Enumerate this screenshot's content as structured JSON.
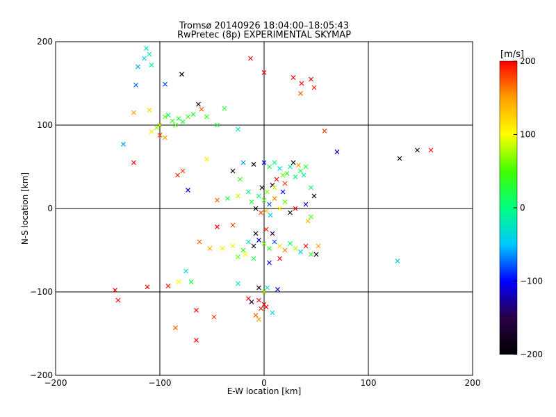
{
  "chart_data": {
    "type": "scatter",
    "title_line1": "Tromsø 20140926 18:04:00–18:05:43",
    "title_line2": "RwPretec (8p) EXPERIMENTAL SKYMAP",
    "xlabel": "E-W location [km]",
    "ylabel": "N-S location [km]",
    "xlim": [
      -200,
      200
    ],
    "ylim": [
      -200,
      200
    ],
    "xticks": [
      -200,
      -100,
      0,
      100,
      200
    ],
    "yticks": [
      -200,
      -100,
      0,
      100,
      200
    ],
    "grid": true,
    "colorbar": {
      "unit_label": "[m/s]",
      "range": [
        -200,
        200
      ],
      "ticks": [
        200,
        100,
        0,
        -100,
        -200
      ],
      "colormap": [
        "#000000",
        "#2a0046",
        "#0000ff",
        "#00c8ff",
        "#00ff80",
        "#40ff00",
        "#ffff00",
        "#ffa000",
        "#ff0000"
      ]
    },
    "points": [
      {
        "x": -113,
        "y": 192,
        "v": -30
      },
      {
        "x": -110,
        "y": 185,
        "v": -20
      },
      {
        "x": -115,
        "y": 180,
        "v": -40
      },
      {
        "x": -121,
        "y": 170,
        "v": -60
      },
      {
        "x": -108,
        "y": 172,
        "v": -10
      },
      {
        "x": -123,
        "y": 148,
        "v": -70
      },
      {
        "x": -95,
        "y": 149,
        "v": -80
      },
      {
        "x": -79,
        "y": 161,
        "v": -190
      },
      {
        "x": -125,
        "y": 115,
        "v": 150
      },
      {
        "x": -110,
        "y": 118,
        "v": 120
      },
      {
        "x": -100,
        "y": 100,
        "v": 90
      },
      {
        "x": -95,
        "y": 110,
        "v": 60
      },
      {
        "x": -88,
        "y": 105,
        "v": 40
      },
      {
        "x": -82,
        "y": 108,
        "v": 30
      },
      {
        "x": -78,
        "y": 104,
        "v": 20
      },
      {
        "x": -73,
        "y": 110,
        "v": 40
      },
      {
        "x": -68,
        "y": 113,
        "v": 30
      },
      {
        "x": -60,
        "y": 119,
        "v": 170
      },
      {
        "x": -63,
        "y": 125,
        "v": -200
      },
      {
        "x": -108,
        "y": 92,
        "v": 110
      },
      {
        "x": -103,
        "y": 97,
        "v": 70
      },
      {
        "x": -92,
        "y": 112,
        "v": 10
      },
      {
        "x": -85,
        "y": 100,
        "v": 50
      },
      {
        "x": -55,
        "y": 110,
        "v": 40
      },
      {
        "x": -45,
        "y": 100,
        "v": 20
      },
      {
        "x": -38,
        "y": 120,
        "v": 30
      },
      {
        "x": -135,
        "y": 77,
        "v": -60
      },
      {
        "x": -125,
        "y": 55,
        "v": 200
      },
      {
        "x": -100,
        "y": 88,
        "v": 180
      },
      {
        "x": -95,
        "y": 85,
        "v": 150
      },
      {
        "x": -25,
        "y": 95,
        "v": -30
      },
      {
        "x": 0,
        "y": 163,
        "v": 200
      },
      {
        "x": -13,
        "y": 180,
        "v": 200
      },
      {
        "x": 28,
        "y": 157,
        "v": 200
      },
      {
        "x": 36,
        "y": 150,
        "v": 200
      },
      {
        "x": 45,
        "y": 155,
        "v": 200
      },
      {
        "x": 35,
        "y": 138,
        "v": 170
      },
      {
        "x": 48,
        "y": 145,
        "v": 190
      },
      {
        "x": 58,
        "y": 93,
        "v": 180
      },
      {
        "x": 70,
        "y": 68,
        "v": -120
      },
      {
        "x": 130,
        "y": 60,
        "v": -200
      },
      {
        "x": 147,
        "y": 70,
        "v": -190
      },
      {
        "x": 160,
        "y": 70,
        "v": 200
      },
      {
        "x": 128,
        "y": -63,
        "v": -40
      },
      {
        "x": -83,
        "y": 40,
        "v": 190
      },
      {
        "x": -78,
        "y": 45,
        "v": 180
      },
      {
        "x": -73,
        "y": 22,
        "v": -110
      },
      {
        "x": -55,
        "y": 59,
        "v": 110
      },
      {
        "x": -30,
        "y": 45,
        "v": -200
      },
      {
        "x": -23,
        "y": 35,
        "v": 40
      },
      {
        "x": -20,
        "y": 55,
        "v": -60
      },
      {
        "x": -10,
        "y": 53,
        "v": -200
      },
      {
        "x": 0,
        "y": 55,
        "v": -100
      },
      {
        "x": 5,
        "y": 50,
        "v": 20
      },
      {
        "x": 10,
        "y": 55,
        "v": 0
      },
      {
        "x": 15,
        "y": 48,
        "v": -30
      },
      {
        "x": 18,
        "y": 40,
        "v": 60
      },
      {
        "x": 22,
        "y": 42,
        "v": 40
      },
      {
        "x": 25,
        "y": 50,
        "v": -20
      },
      {
        "x": 30,
        "y": 38,
        "v": 10
      },
      {
        "x": 35,
        "y": 45,
        "v": 20
      },
      {
        "x": 38,
        "y": 40,
        "v": -10
      },
      {
        "x": 40,
        "y": 50,
        "v": 30
      },
      {
        "x": 28,
        "y": 55,
        "v": -200
      },
      {
        "x": 33,
        "y": 52,
        "v": 150
      },
      {
        "x": 20,
        "y": 30,
        "v": 180
      },
      {
        "x": 12,
        "y": 35,
        "v": 200
      },
      {
        "x": 8,
        "y": 28,
        "v": -150
      },
      {
        "x": 3,
        "y": 20,
        "v": 70
      },
      {
        "x": -2,
        "y": 25,
        "v": -190
      },
      {
        "x": -5,
        "y": 15,
        "v": 0
      },
      {
        "x": 0,
        "y": 10,
        "v": 50
      },
      {
        "x": 5,
        "y": 5,
        "v": -80
      },
      {
        "x": 10,
        "y": 12,
        "v": 160
      },
      {
        "x": 15,
        "y": 0,
        "v": 100
      },
      {
        "x": -8,
        "y": 0,
        "v": -200
      },
      {
        "x": -3,
        "y": -5,
        "v": 180
      },
      {
        "x": 2,
        "y": -3,
        "v": 130
      },
      {
        "x": 6,
        "y": -8,
        "v": -40
      },
      {
        "x": -12,
        "y": 8,
        "v": 30
      },
      {
        "x": -15,
        "y": 20,
        "v": 0
      },
      {
        "x": -25,
        "y": 15,
        "v": 80
      },
      {
        "x": -35,
        "y": 12,
        "v": 20
      },
      {
        "x": -45,
        "y": 10,
        "v": 170
      },
      {
        "x": 20,
        "y": 8,
        "v": 60
      },
      {
        "x": 25,
        "y": -5,
        "v": -180
      },
      {
        "x": 30,
        "y": 0,
        "v": 200
      },
      {
        "x": 40,
        "y": 5,
        "v": -120
      },
      {
        "x": 45,
        "y": 25,
        "v": 10
      },
      {
        "x": 48,
        "y": 15,
        "v": -200
      },
      {
        "x": 45,
        "y": -10,
        "v": 50
      },
      {
        "x": 42,
        "y": -15,
        "v": 140
      },
      {
        "x": 18,
        "y": 20,
        "v": -100
      },
      {
        "x": 10,
        "y": 25,
        "v": 90
      },
      {
        "x": -45,
        "y": -22,
        "v": 200
      },
      {
        "x": -30,
        "y": -20,
        "v": 180
      },
      {
        "x": -62,
        "y": -40,
        "v": 170
      },
      {
        "x": -52,
        "y": -48,
        "v": 140
      },
      {
        "x": -40,
        "y": -48,
        "v": 110
      },
      {
        "x": -30,
        "y": -45,
        "v": 90
      },
      {
        "x": -20,
        "y": -50,
        "v": 40
      },
      {
        "x": -15,
        "y": -40,
        "v": -30
      },
      {
        "x": -10,
        "y": -45,
        "v": -200
      },
      {
        "x": -5,
        "y": -38,
        "v": -120
      },
      {
        "x": 0,
        "y": -42,
        "v": 60
      },
      {
        "x": 5,
        "y": -48,
        "v": 30
      },
      {
        "x": 10,
        "y": -40,
        "v": -80
      },
      {
        "x": 15,
        "y": -45,
        "v": 120
      },
      {
        "x": 20,
        "y": -50,
        "v": 160
      },
      {
        "x": 25,
        "y": -42,
        "v": 10
      },
      {
        "x": 30,
        "y": -48,
        "v": 80
      },
      {
        "x": 35,
        "y": -52,
        "v": -40
      },
      {
        "x": 40,
        "y": -45,
        "v": 200
      },
      {
        "x": 45,
        "y": -55,
        "v": 40
      },
      {
        "x": 50,
        "y": -55,
        "v": -200
      },
      {
        "x": 52,
        "y": -45,
        "v": 150
      },
      {
        "x": -8,
        "y": -30,
        "v": -200
      },
      {
        "x": 8,
        "y": -30,
        "v": -150
      },
      {
        "x": 2,
        "y": -25,
        "v": 190
      },
      {
        "x": -18,
        "y": -55,
        "v": 100
      },
      {
        "x": -25,
        "y": -58,
        "v": 60
      },
      {
        "x": -10,
        "y": -60,
        "v": 20
      },
      {
        "x": 5,
        "y": -65,
        "v": -100
      },
      {
        "x": 15,
        "y": -60,
        "v": 200
      },
      {
        "x": -75,
        "y": -75,
        "v": -40
      },
      {
        "x": -70,
        "y": -88,
        "v": 20
      },
      {
        "x": -82,
        "y": -88,
        "v": 100
      },
      {
        "x": -25,
        "y": -90,
        "v": -30
      },
      {
        "x": -15,
        "y": -108,
        "v": 200
      },
      {
        "x": -12,
        "y": -112,
        "v": -160
      },
      {
        "x": -5,
        "y": -95,
        "v": -200
      },
      {
        "x": 0,
        "y": -100,
        "v": 80
      },
      {
        "x": 3,
        "y": -95,
        "v": -30
      },
      {
        "x": 13,
        "y": -97,
        "v": -120
      },
      {
        "x": -5,
        "y": -110,
        "v": 200
      },
      {
        "x": 0,
        "y": -115,
        "v": 200
      },
      {
        "x": -3,
        "y": -120,
        "v": 190
      },
      {
        "x": 2,
        "y": -118,
        "v": 200
      },
      {
        "x": -8,
        "y": -128,
        "v": 170
      },
      {
        "x": 8,
        "y": -125,
        "v": -40
      },
      {
        "x": -5,
        "y": -133,
        "v": 150
      },
      {
        "x": -143,
        "y": -98,
        "v": 200
      },
      {
        "x": -140,
        "y": -110,
        "v": 200
      },
      {
        "x": -112,
        "y": -94,
        "v": 200
      },
      {
        "x": -92,
        "y": -93,
        "v": 190
      },
      {
        "x": -48,
        "y": -130,
        "v": 180
      },
      {
        "x": -65,
        "y": -122,
        "v": 200
      },
      {
        "x": -85,
        "y": -143,
        "v": 170
      },
      {
        "x": -65,
        "y": -158,
        "v": 200
      }
    ]
  }
}
